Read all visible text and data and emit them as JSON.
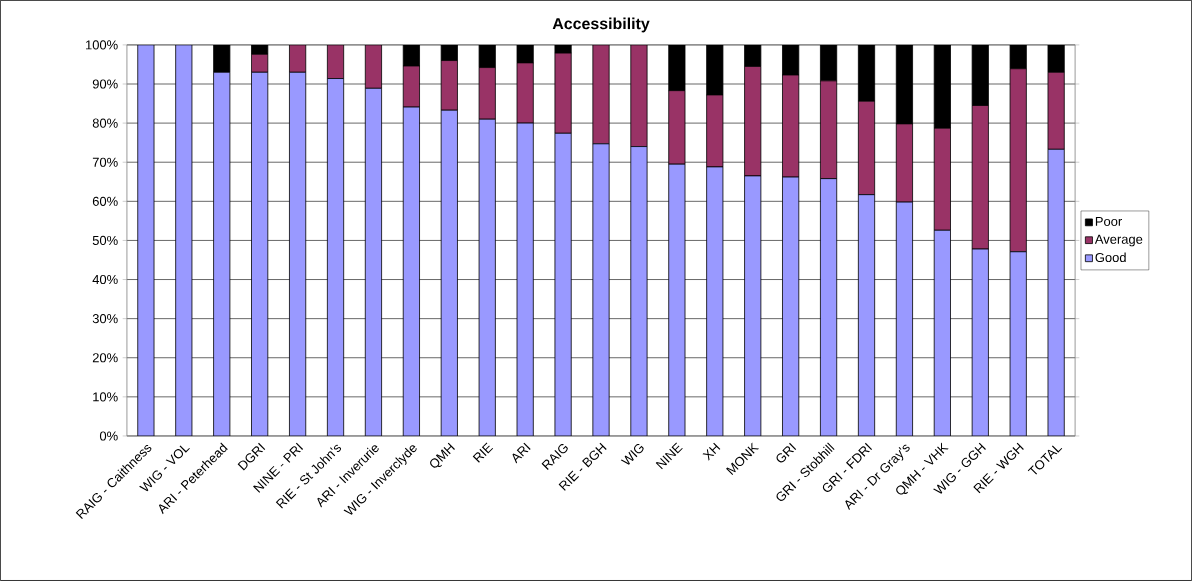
{
  "chart_data": {
    "type": "bar",
    "stacked": true,
    "title": "Accessibility",
    "categories": [
      "RAIG - Caithness",
      "WIG - VOL",
      "ARI - Peterhead",
      "DGRI",
      "NINE - PRI",
      "RIE - St John's",
      "ARI - Inverurie",
      "WIG - Inverclyde",
      "QMH",
      "RIE",
      "ARI",
      "RAIG",
      "RIE - BGH",
      "WIG",
      "NINE",
      "XH",
      "MONK",
      "GRI",
      "GRI - Stobhill",
      "GRI - FDRI",
      "ARI - Dr Gray's",
      "QMH - VHK",
      "WIG - GGH",
      "RIE - WGH",
      "TOTAL"
    ],
    "series": [
      {
        "name": "Good",
        "color": "#9999ff",
        "values": [
          100,
          100,
          93,
          93,
          93,
          91.4,
          88.9,
          84.1,
          83.3,
          81,
          80,
          77.4,
          74.7,
          74,
          69.5,
          68.8,
          66.5,
          66.2,
          65.8,
          61.7,
          59.8,
          52.6,
          47.8,
          47.1,
          73.3
        ]
      },
      {
        "name": "Average",
        "color": "#993366",
        "values": [
          0,
          0,
          0,
          4.6,
          7,
          8.6,
          11.1,
          10.5,
          12.7,
          13.2,
          15.4,
          20.5,
          25.3,
          26,
          18.8,
          18.4,
          28,
          26.1,
          25,
          23.9,
          20,
          26.1,
          36.7,
          46.8,
          19.7
        ]
      },
      {
        "name": "Poor",
        "color": "#000000",
        "values": [
          0,
          0,
          7,
          2.4,
          0,
          0,
          0,
          5.4,
          4,
          5.8,
          4.6,
          2.1,
          0,
          0,
          11.7,
          12.8,
          5.5,
          7.7,
          9.2,
          14.4,
          20.2,
          21.3,
          15.5,
          6.1,
          7
        ]
      }
    ],
    "ylim": [
      0,
      100
    ],
    "yticks": [
      {
        "value": 0,
        "label": "0%"
      },
      {
        "value": 10,
        "label": "10%"
      },
      {
        "value": 20,
        "label": "20%"
      },
      {
        "value": 30,
        "label": "30%"
      },
      {
        "value": 40,
        "label": "40%"
      },
      {
        "value": 50,
        "label": "50%"
      },
      {
        "value": 60,
        "label": "60%"
      },
      {
        "value": 70,
        "label": "70%"
      },
      {
        "value": 80,
        "label": "80%"
      },
      {
        "value": 90,
        "label": "90%"
      },
      {
        "value": 100,
        "label": "100%"
      }
    ],
    "grid": "y",
    "legend": "right"
  }
}
